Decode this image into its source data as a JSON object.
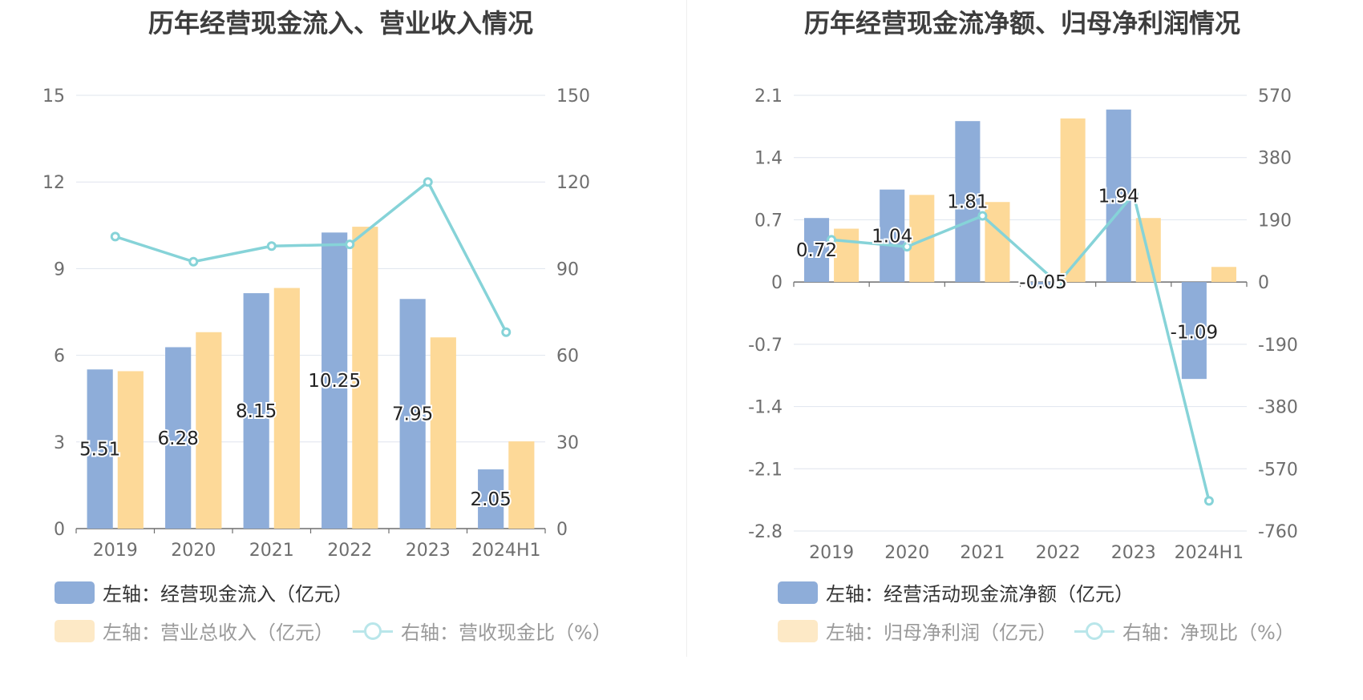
{
  "colors": {
    "bar_primary": "#8eadd9",
    "bar_secondary": "#fdd998",
    "line": "#86d3d8",
    "line_legend_faded": "#b9e6ea",
    "swatch_secondary_faded": "#fde9c6",
    "grid": "#dfe4ee",
    "axis": "#6e6e6e"
  },
  "chart_data": [
    {
      "type": "bar",
      "title": "历年经营现金流入、营业收入情况",
      "categories": [
        "2019",
        "2020",
        "2021",
        "2022",
        "2023",
        "2024H1"
      ],
      "y_left": {
        "min": 0,
        "max": 15,
        "ticks": [
          "15",
          "12",
          "9",
          "6",
          "3",
          "0"
        ]
      },
      "y_right": {
        "min": 0,
        "max": 150,
        "ticks": [
          "150",
          "120",
          "90",
          "60",
          "30",
          "0"
        ]
      },
      "series": [
        {
          "name": "左轴：经营现金流入（亿元）",
          "kind": "bar",
          "axis": "left",
          "values": [
            5.51,
            6.28,
            8.15,
            10.25,
            7.95,
            2.05
          ],
          "labels": [
            "5.51",
            "6.28",
            "8.15",
            "10.25",
            "7.95",
            "2.05"
          ]
        },
        {
          "name": "左轴：营业总收入（亿元）",
          "kind": "bar",
          "axis": "left",
          "values": [
            5.45,
            6.8,
            8.33,
            10.45,
            6.62,
            3.02
          ]
        },
        {
          "name": "右轴：营收现金比（%）",
          "kind": "line",
          "axis": "right",
          "values": [
            101.1,
            92.4,
            97.8,
            98.4,
            120.0,
            68.0
          ]
        }
      ]
    },
    {
      "type": "bar",
      "title": "历年经营现金流净额、归母净利润情况",
      "categories": [
        "2019",
        "2020",
        "2021",
        "2022",
        "2023",
        "2024H1"
      ],
      "y_left": {
        "min": -2.8,
        "max": 2.1,
        "ticks": [
          "2.1",
          "1.4",
          "0.7",
          "0",
          "-0.7",
          "-1.4",
          "-2.1",
          "-2.8"
        ]
      },
      "y_right": {
        "min": -760,
        "max": 570,
        "ticks": [
          "570",
          "380",
          "190",
          "0",
          "-190",
          "-380",
          "-570",
          "-760"
        ]
      },
      "series": [
        {
          "name": "左轴：经营活动现金流净额（亿元）",
          "kind": "bar",
          "axis": "left",
          "values": [
            0.72,
            1.04,
            1.81,
            -0.05,
            1.94,
            -1.09
          ],
          "labels": [
            "0.72",
            "1.04",
            "1.81",
            "-0.05",
            "1.94",
            "-1.09"
          ]
        },
        {
          "name": "左轴：归母净利润（亿元）",
          "kind": "bar",
          "axis": "left",
          "values": [
            0.6,
            0.98,
            0.9,
            1.84,
            0.72,
            0.17
          ]
        },
        {
          "name": "右轴：净现比（%）",
          "kind": "line",
          "axis": "right",
          "values": [
            129,
            108,
            202,
            -4,
            268,
            -668
          ]
        }
      ]
    }
  ]
}
